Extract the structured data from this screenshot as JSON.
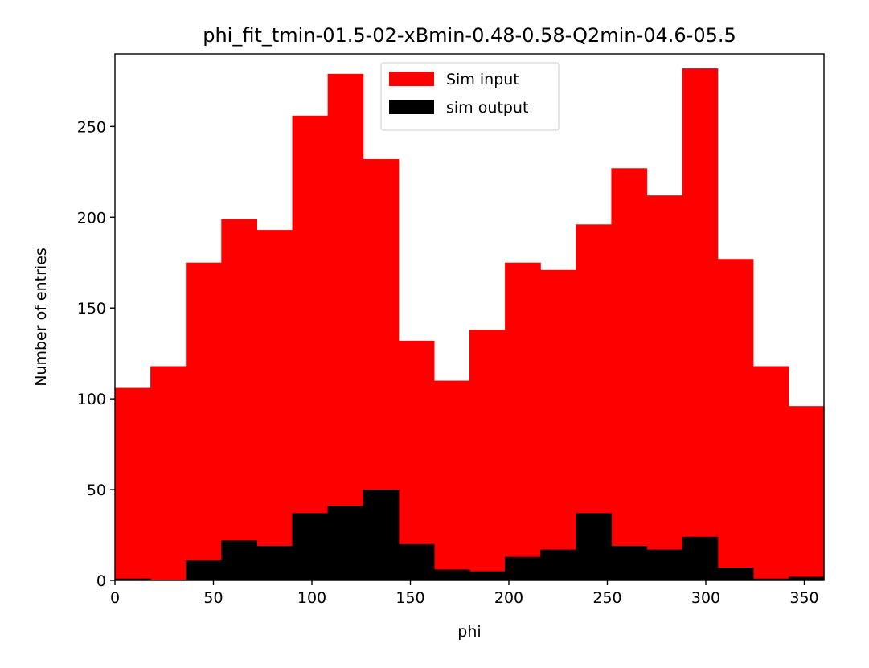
{
  "chart_data": {
    "type": "bar",
    "title": "phi_fit_tmin-01.5-02-xBmin-0.48-0.58-Q2min-04.6-05.5",
    "xlabel": "phi",
    "ylabel": "Number of entries",
    "xlim": [
      0,
      360
    ],
    "ylim": [
      0,
      290
    ],
    "xticks": [
      0,
      50,
      100,
      150,
      200,
      250,
      300,
      350
    ],
    "yticks": [
      0,
      50,
      100,
      150,
      200,
      250
    ],
    "grid": false,
    "legend_position": "upper-center",
    "bin_edges": [
      0,
      18,
      36,
      54,
      72,
      90,
      108,
      126,
      144,
      162,
      180,
      198,
      216,
      234,
      252,
      270,
      288,
      306,
      324,
      342,
      360
    ],
    "series": [
      {
        "name": "Sim input",
        "color": "#ff0000",
        "values": [
          106,
          118,
          175,
          199,
          193,
          256,
          279,
          232,
          132,
          110,
          138,
          175,
          171,
          196,
          227,
          212,
          282,
          177,
          118,
          96
        ]
      },
      {
        "name": "sim output",
        "color": "#000000",
        "values": [
          1,
          0,
          11,
          22,
          19,
          37,
          41,
          50,
          20,
          6,
          5,
          13,
          17,
          37,
          19,
          17,
          24,
          7,
          1,
          2
        ]
      }
    ]
  }
}
